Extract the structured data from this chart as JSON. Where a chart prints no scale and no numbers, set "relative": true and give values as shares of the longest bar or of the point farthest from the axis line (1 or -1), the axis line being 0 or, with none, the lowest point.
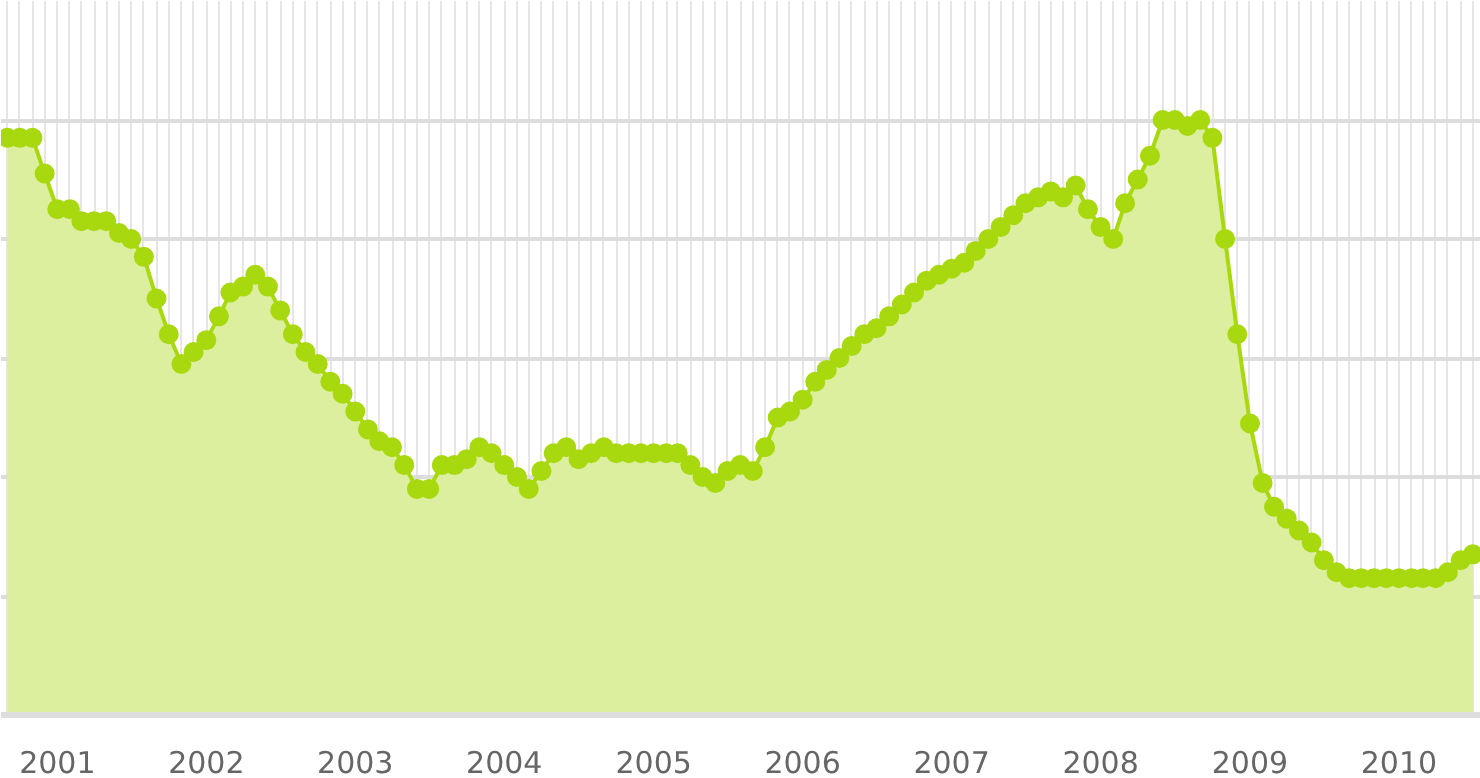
{
  "chart_data": {
    "type": "area",
    "relative": true,
    "marker": "circle",
    "grid": true,
    "x": [
      "2000-09",
      "2000-10",
      "2000-11",
      "2000-12",
      "2001-01",
      "2001-02",
      "2001-03",
      "2001-04",
      "2001-05",
      "2001-06",
      "2001-07",
      "2001-08",
      "2001-09",
      "2001-10",
      "2001-11",
      "2001-12",
      "2002-01",
      "2002-02",
      "2002-03",
      "2002-04",
      "2002-05",
      "2002-06",
      "2002-07",
      "2002-08",
      "2002-09",
      "2002-10",
      "2002-11",
      "2002-12",
      "2003-01",
      "2003-02",
      "2003-03",
      "2003-04",
      "2003-05",
      "2003-06",
      "2003-07",
      "2003-08",
      "2003-09",
      "2003-10",
      "2003-11",
      "2003-12",
      "2004-01",
      "2004-02",
      "2004-03",
      "2004-04",
      "2004-05",
      "2004-06",
      "2004-07",
      "2004-08",
      "2004-09",
      "2004-10",
      "2004-11",
      "2004-12",
      "2005-01",
      "2005-02",
      "2005-03",
      "2005-04",
      "2005-05",
      "2005-06",
      "2005-07",
      "2005-08",
      "2005-09",
      "2005-10",
      "2005-11",
      "2005-12",
      "2006-01",
      "2006-02",
      "2006-03",
      "2006-04",
      "2006-05",
      "2006-06",
      "2006-07",
      "2006-08",
      "2006-09",
      "2006-10",
      "2006-11",
      "2006-12",
      "2007-01",
      "2007-02",
      "2007-03",
      "2007-04",
      "2007-05",
      "2007-06",
      "2007-07",
      "2007-08",
      "2007-09",
      "2007-10",
      "2007-11",
      "2007-12",
      "2008-01",
      "2008-02",
      "2008-03",
      "2008-04",
      "2008-05",
      "2008-06",
      "2008-07",
      "2008-08",
      "2008-09",
      "2008-10",
      "2008-11",
      "2008-12",
      "2009-01",
      "2009-02",
      "2009-03",
      "2009-04",
      "2009-05",
      "2009-06",
      "2009-07",
      "2009-08",
      "2009-09",
      "2009-10",
      "2009-11",
      "2009-12",
      "2010-01",
      "2010-02",
      "2010-03",
      "2010-04",
      "2010-05",
      "2010-06",
      "2010-07"
    ],
    "xlim": [
      "2000-08-16",
      "2010-07-21"
    ],
    "xticks": [
      {
        "value": "2001-01",
        "label": "2001"
      },
      {
        "value": "2002-01",
        "label": "2002"
      },
      {
        "value": "2003-01",
        "label": "2003"
      },
      {
        "value": "2004-01",
        "label": "2004"
      },
      {
        "value": "2005-01",
        "label": "2005"
      },
      {
        "value": "2006-01",
        "label": "2006"
      },
      {
        "value": "2007-01",
        "label": "2007"
      },
      {
        "value": "2008-01",
        "label": "2008"
      },
      {
        "value": "2009-01",
        "label": "2009"
      },
      {
        "value": "2010-01",
        "label": "2010"
      }
    ],
    "series": [
      {
        "color": "#a8d80e",
        "values": [
          0.97,
          0.97,
          0.97,
          0.91,
          0.85,
          0.85,
          0.83,
          0.83,
          0.83,
          0.81,
          0.8,
          0.77,
          0.7,
          0.64,
          0.59,
          0.61,
          0.63,
          0.67,
          0.71,
          0.72,
          0.74,
          0.72,
          0.68,
          0.64,
          0.61,
          0.59,
          0.56,
          0.54,
          0.51,
          0.48,
          0.46,
          0.45,
          0.42,
          0.38,
          0.38,
          0.42,
          0.42,
          0.43,
          0.45,
          0.44,
          0.42,
          0.4,
          0.38,
          0.41,
          0.44,
          0.45,
          0.43,
          0.44,
          0.45,
          0.44,
          0.44,
          0.44,
          0.44,
          0.44,
          0.44,
          0.42,
          0.4,
          0.39,
          0.41,
          0.42,
          0.41,
          0.45,
          0.5,
          0.51,
          0.53,
          0.56,
          0.58,
          0.6,
          0.62,
          0.64,
          0.65,
          0.67,
          0.69,
          0.71,
          0.73,
          0.74,
          0.75,
          0.76,
          0.78,
          0.8,
          0.82,
          0.84,
          0.86,
          0.87,
          0.88,
          0.87,
          0.89,
          0.85,
          0.82,
          0.8,
          0.86,
          0.9,
          0.94,
          1.0,
          1.0,
          0.99,
          1.0,
          0.97,
          0.8,
          0.64,
          0.49,
          0.39,
          0.35,
          0.33,
          0.31,
          0.29,
          0.26,
          0.24,
          0.23,
          0.23,
          0.23,
          0.23,
          0.23,
          0.23,
          0.23,
          0.23,
          0.24,
          0.26,
          0.27
        ]
      }
    ]
  }
}
